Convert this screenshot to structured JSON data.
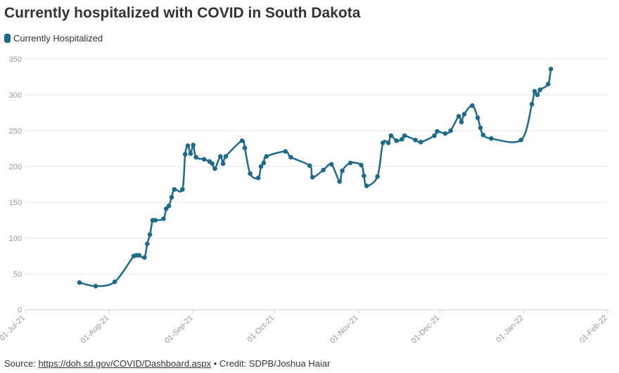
{
  "chart_data": {
    "type": "line",
    "title": "Currently hospitalized with COVID in South Dakota",
    "series": [
      {
        "name": "Currently Hospitalized",
        "color": "#1f6a8a",
        "points": [
          [
            "2021-07-21",
            38
          ],
          [
            "2021-07-27",
            33
          ],
          [
            "2021-08-03",
            39
          ],
          [
            "2021-08-10",
            75
          ],
          [
            "2021-08-11",
            76
          ],
          [
            "2021-08-12",
            76
          ],
          [
            "2021-08-14",
            73
          ],
          [
            "2021-08-15",
            92
          ],
          [
            "2021-08-16",
            105
          ],
          [
            "2021-08-17",
            125
          ],
          [
            "2021-08-18",
            125
          ],
          [
            "2021-08-21",
            127
          ],
          [
            "2021-08-22",
            141
          ],
          [
            "2021-08-23",
            145
          ],
          [
            "2021-08-24",
            157
          ],
          [
            "2021-08-25",
            168
          ],
          [
            "2021-08-28",
            168
          ],
          [
            "2021-08-29",
            217
          ],
          [
            "2021-08-30",
            229
          ],
          [
            "2021-08-31",
            218
          ],
          [
            "2021-09-01",
            230
          ],
          [
            "2021-09-02",
            213
          ],
          [
            "2021-09-05",
            210
          ],
          [
            "2021-09-07",
            207
          ],
          [
            "2021-09-08",
            204
          ],
          [
            "2021-09-09",
            197
          ],
          [
            "2021-09-11",
            214
          ],
          [
            "2021-09-12",
            204
          ],
          [
            "2021-09-13",
            214
          ],
          [
            "2021-09-19",
            236
          ],
          [
            "2021-09-20",
            226
          ],
          [
            "2021-09-22",
            190
          ],
          [
            "2021-09-25",
            184
          ],
          [
            "2021-09-26",
            200
          ],
          [
            "2021-09-27",
            205
          ],
          [
            "2021-09-28",
            214
          ],
          [
            "2021-10-05",
            221
          ],
          [
            "2021-10-07",
            213
          ],
          [
            "2021-10-14",
            201
          ],
          [
            "2021-10-15",
            185
          ],
          [
            "2021-10-19",
            195
          ],
          [
            "2021-10-22",
            203
          ],
          [
            "2021-10-25",
            179
          ],
          [
            "2021-10-26",
            194
          ],
          [
            "2021-10-29",
            205
          ],
          [
            "2021-11-02",
            202
          ],
          [
            "2021-11-03",
            187
          ],
          [
            "2021-11-04",
            173
          ],
          [
            "2021-11-08",
            186
          ],
          [
            "2021-11-10",
            233
          ],
          [
            "2021-11-12",
            233
          ],
          [
            "2021-11-13",
            243
          ],
          [
            "2021-11-15",
            236
          ],
          [
            "2021-11-17",
            238
          ],
          [
            "2021-11-18",
            243
          ],
          [
            "2021-11-22",
            237
          ],
          [
            "2021-11-24",
            234
          ],
          [
            "2021-11-29",
            243
          ],
          [
            "2021-11-30",
            249
          ],
          [
            "2021-12-03",
            246
          ],
          [
            "2021-12-05",
            250
          ],
          [
            "2021-12-08",
            270
          ],
          [
            "2021-12-09",
            262
          ],
          [
            "2021-12-10",
            273
          ],
          [
            "2021-12-13",
            285
          ],
          [
            "2021-12-15",
            268
          ],
          [
            "2021-12-16",
            254
          ],
          [
            "2021-12-17",
            244
          ],
          [
            "2021-12-20",
            239
          ],
          [
            "2021-12-31",
            237
          ],
          [
            "2022-01-04",
            287
          ],
          [
            "2022-01-05",
            305
          ],
          [
            "2022-01-06",
            300
          ],
          [
            "2022-01-07",
            307
          ],
          [
            "2022-01-10",
            315
          ],
          [
            "2022-01-11",
            336
          ]
        ]
      }
    ],
    "x_ticks": [
      "01-Jul-21",
      "01-Aug-21",
      "01-Sep-21",
      "01-Oct-21",
      "01-Nov-21",
      "01-Dec-21",
      "01-Jan-22",
      "01-Feb-22"
    ],
    "x_range": [
      "2021-07-01",
      "2022-02-01"
    ],
    "y_ticks": [
      0,
      50,
      100,
      150,
      200,
      250,
      300,
      350
    ],
    "ylim": [
      0,
      350
    ],
    "grid": "horizontal",
    "legend": "top-left"
  },
  "footer": {
    "source_label": "Source:",
    "source_link": "https://doh.sd.gov/COVID/Dashboard.aspx",
    "credit": "• Credit: SDPB/Joshua Haiar"
  }
}
